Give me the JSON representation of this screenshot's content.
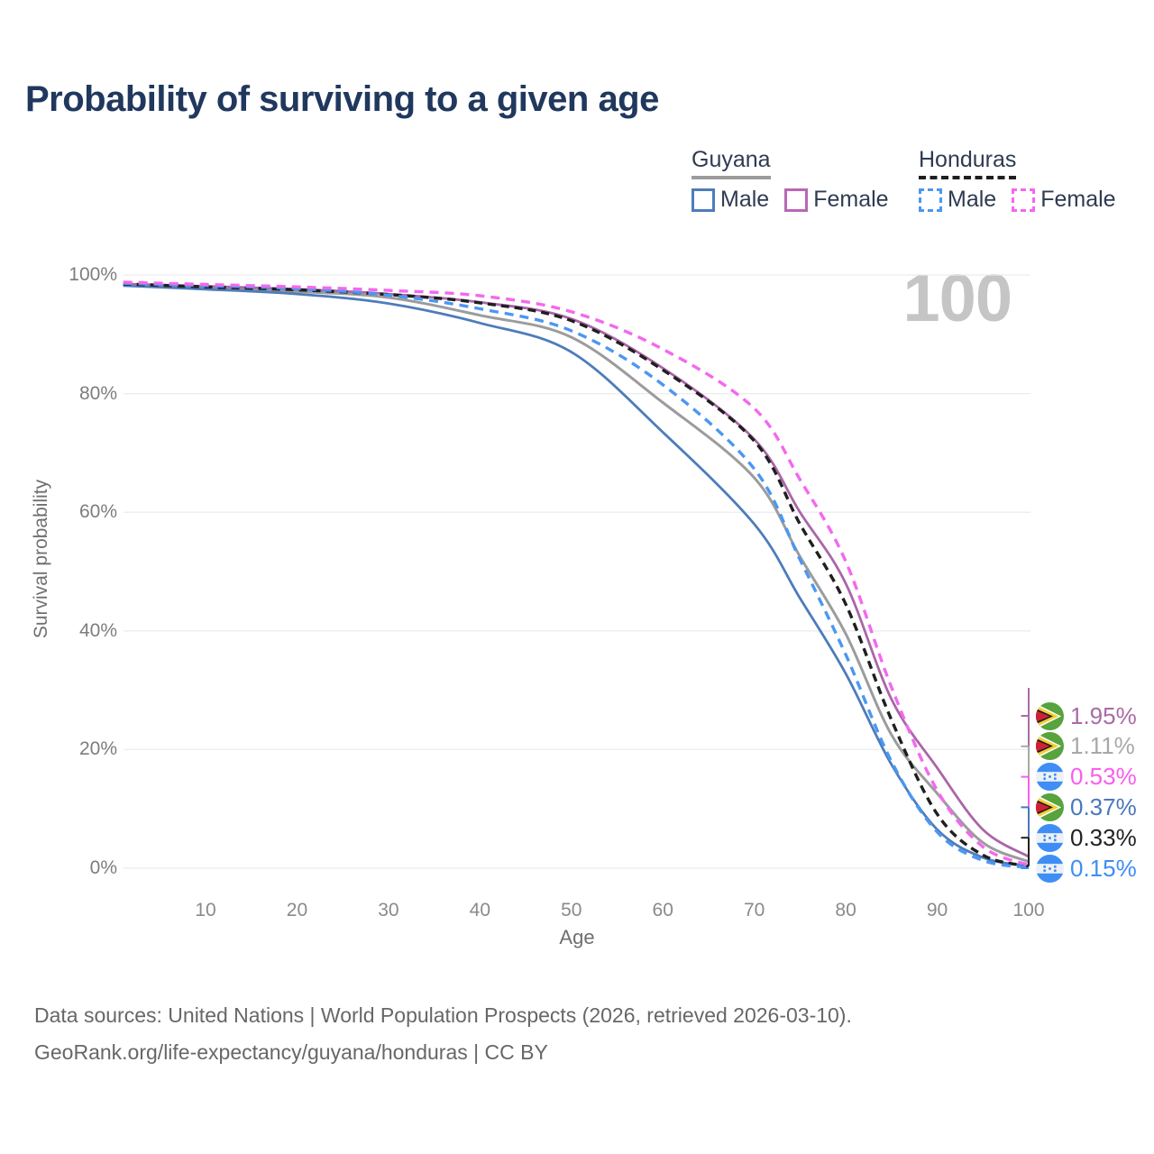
{
  "title": "Probability of surviving to a given age",
  "watermark_age": "100",
  "legend": {
    "groups": [
      {
        "name": "Guyana",
        "line_style": "solid",
        "line_color": "#9c9c9c",
        "items": [
          {
            "label": "Male",
            "box_color": "#4d7cbb",
            "box_style": "solid"
          },
          {
            "label": "Female",
            "box_color": "#b768b4",
            "box_style": "solid"
          }
        ]
      },
      {
        "name": "Honduras",
        "line_style": "dashed",
        "line_color": "#1f1f1f",
        "items": [
          {
            "label": "Male",
            "box_color": "#4b97f2",
            "box_style": "dashed"
          },
          {
            "label": "Female",
            "box_color": "#f468ee",
            "box_style": "dashed"
          }
        ]
      }
    ]
  },
  "y_axis": {
    "title": "Survival probability",
    "tick_labels": [
      "100%",
      "80%",
      "60%",
      "40%",
      "20%",
      "0%"
    ],
    "tick_values": [
      100,
      80,
      60,
      40,
      20,
      0
    ]
  },
  "x_axis": {
    "title": "Age",
    "tick_values": [
      10,
      20,
      30,
      40,
      50,
      60,
      70,
      80,
      90,
      100
    ]
  },
  "end_labels": [
    {
      "series": "Guyana Female",
      "flag": "guyana",
      "value_label": "1.95%",
      "color": "#a96ba5"
    },
    {
      "series": "Guyana",
      "flag": "guyana",
      "value_label": "1.11%",
      "color": "#a8a8a8"
    },
    {
      "series": "Honduras Female",
      "flag": "honduras",
      "value_label": "0.53%",
      "color": "#f95ded"
    },
    {
      "series": "Guyana Male",
      "flag": "guyana",
      "value_label": "0.37%",
      "color": "#4a77bd"
    },
    {
      "series": "Honduras",
      "flag": "honduras",
      "value_label": "0.33%",
      "color": "#222222"
    },
    {
      "series": "Honduras Male",
      "flag": "honduras",
      "value_label": "0.15%",
      "color": "#3f8df5"
    }
  ],
  "footer": {
    "line1": "Data sources: United Nations | World Population Prospects (2026, retrieved 2026-03-10).",
    "line2": "GeoRank.org/life-expectancy/guyana/honduras | CC BY"
  },
  "chart_data": {
    "type": "line",
    "title": "Probability of surviving to a given age",
    "xlabel": "Age",
    "ylabel": "Survival probability",
    "xlim": [
      1,
      100
    ],
    "ylim": [
      0,
      100
    ],
    "grid": true,
    "legend_position": "top-right",
    "hover_age": 100,
    "x": [
      1,
      10,
      20,
      30,
      40,
      50,
      60,
      70,
      75,
      80,
      85,
      90,
      95,
      100
    ],
    "series": [
      {
        "name": "Guyana",
        "country": "Guyana",
        "sex": "both",
        "color": "#9c9c9c",
        "dash": "solid",
        "values": [
          98.3,
          97.8,
          97.2,
          96.2,
          93.2,
          89.5,
          78.5,
          65.8,
          52.5,
          39.5,
          22.5,
          12.6,
          4.3,
          1.11
        ]
      },
      {
        "name": "Guyana Male",
        "country": "Guyana",
        "sex": "male",
        "color": "#4d7cbb",
        "dash": "solid",
        "values": [
          98.2,
          97.6,
          96.8,
          95.2,
          91.9,
          87.0,
          73.5,
          58.0,
          45.5,
          32.8,
          17.5,
          6.5,
          1.8,
          0.37
        ]
      },
      {
        "name": "Guyana Female",
        "country": "Guyana",
        "sex": "female",
        "color": "#aa66a8",
        "dash": "solid",
        "values": [
          98.5,
          98.1,
          97.6,
          96.8,
          95.4,
          92.6,
          84.3,
          72.3,
          60.0,
          48.0,
          28.5,
          16.9,
          6.5,
          1.95
        ]
      },
      {
        "name": "Honduras",
        "country": "Honduras",
        "sex": "both",
        "color": "#1f1f1f",
        "dash": "dashed",
        "values": [
          98.5,
          98.0,
          97.5,
          96.7,
          95.3,
          92.3,
          84.0,
          72.0,
          58.0,
          44.5,
          25.0,
          9.1,
          2.2,
          0.33
        ]
      },
      {
        "name": "Honduras Male",
        "country": "Honduras",
        "sex": "male",
        "color": "#4b97f2",
        "dash": "dashed",
        "values": [
          98.6,
          98.2,
          97.7,
          96.6,
          94.3,
          90.6,
          81.5,
          67.3,
          52.0,
          36.0,
          18.0,
          6.1,
          1.3,
          0.15
        ]
      },
      {
        "name": "Honduras Female",
        "country": "Honduras",
        "sex": "female",
        "color": "#f468ee",
        "dash": "dashed",
        "values": [
          98.8,
          98.4,
          98.0,
          97.4,
          96.5,
          93.8,
          87.5,
          77.5,
          65.5,
          51.7,
          30.5,
          13.1,
          3.6,
          0.53
        ]
      }
    ],
    "end_values_at_age_100": {
      "Guyana Female": 1.95,
      "Guyana": 1.11,
      "Honduras Female": 0.53,
      "Guyana Male": 0.37,
      "Honduras": 0.33,
      "Honduras Male": 0.15
    }
  }
}
